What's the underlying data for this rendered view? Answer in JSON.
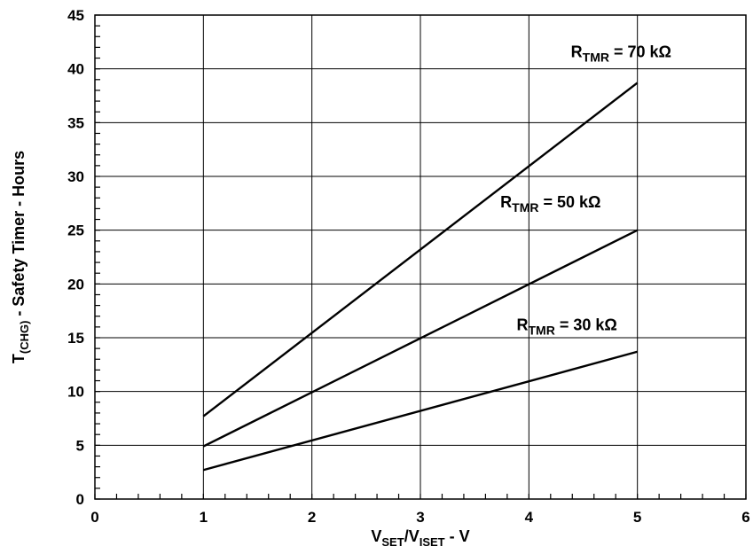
{
  "chart_data": {
    "type": "line",
    "xlabel": {
      "main": "V",
      "sub1": "SET",
      "slash": "/V",
      "sub2": "ISET",
      "tail": " - V"
    },
    "ylabel": {
      "main": "T",
      "sub": "(CHG)",
      "tail": " - Safety Timer - Hours"
    },
    "xlim": [
      0,
      6
    ],
    "ylim": [
      0,
      45
    ],
    "x_ticks": [
      "0",
      "1",
      "2",
      "3",
      "4",
      "5",
      "6"
    ],
    "y_ticks": [
      "0",
      "5",
      "10",
      "15",
      "20",
      "25",
      "30",
      "35",
      "40",
      "45"
    ],
    "grid": true,
    "series": [
      {
        "name": "R_TMR = 70 kΩ",
        "x": [
          1,
          5
        ],
        "y": [
          7.7,
          38.7
        ],
        "color": "#000000"
      },
      {
        "name": "R_TMR = 50 kΩ",
        "x": [
          1,
          5
        ],
        "y": [
          4.9,
          25.0
        ],
        "color": "#000000"
      },
      {
        "name": "R_TMR = 30 kΩ",
        "x": [
          1,
          5
        ],
        "y": [
          2.7,
          13.7
        ],
        "color": "#000000"
      }
    ],
    "annotations": [
      {
        "main": "R",
        "sub": "TMR",
        "rest": " = 70 kΩ",
        "x": 4.85,
        "y": 41.1
      },
      {
        "main": "R",
        "sub": "TMR",
        "rest": " = 50 kΩ",
        "x": 4.2,
        "y": 27.1
      },
      {
        "main": "R",
        "sub": "TMR",
        "rest": " = 30 kΩ",
        "x": 4.35,
        "y": 15.7
      }
    ]
  }
}
